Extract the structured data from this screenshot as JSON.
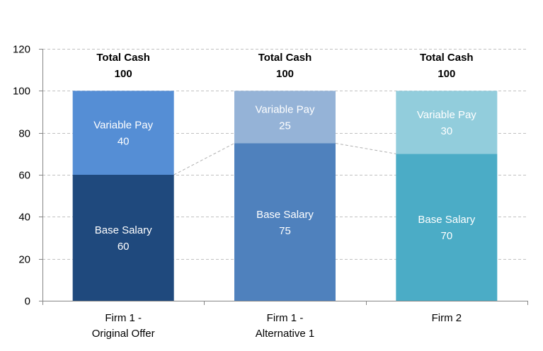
{
  "chart_data": {
    "type": "bar",
    "stacked": true,
    "categories": [
      [
        "Firm 1 -",
        "Original Offer"
      ],
      [
        "Firm 1 -",
        "Alternative 1"
      ],
      [
        "Firm 2"
      ]
    ],
    "series": [
      {
        "name": "Base Salary",
        "values": [
          60,
          75,
          70
        ],
        "colors": [
          "#1f497d",
          "#4f81bd",
          "#4bacc6"
        ]
      },
      {
        "name": "Variable Pay",
        "values": [
          40,
          25,
          30
        ],
        "colors": [
          "#558ed5",
          "#95b3d7",
          "#92cddc"
        ]
      }
    ],
    "totals": {
      "label": "Total Cash",
      "values": [
        100,
        100,
        100
      ]
    },
    "ylim": [
      0,
      120
    ],
    "yticks": [
      0,
      20,
      40,
      60,
      80,
      100,
      120
    ],
    "grid": true,
    "legend": "none",
    "connector_lines": true,
    "title": "",
    "xlabel": "",
    "ylabel": ""
  }
}
